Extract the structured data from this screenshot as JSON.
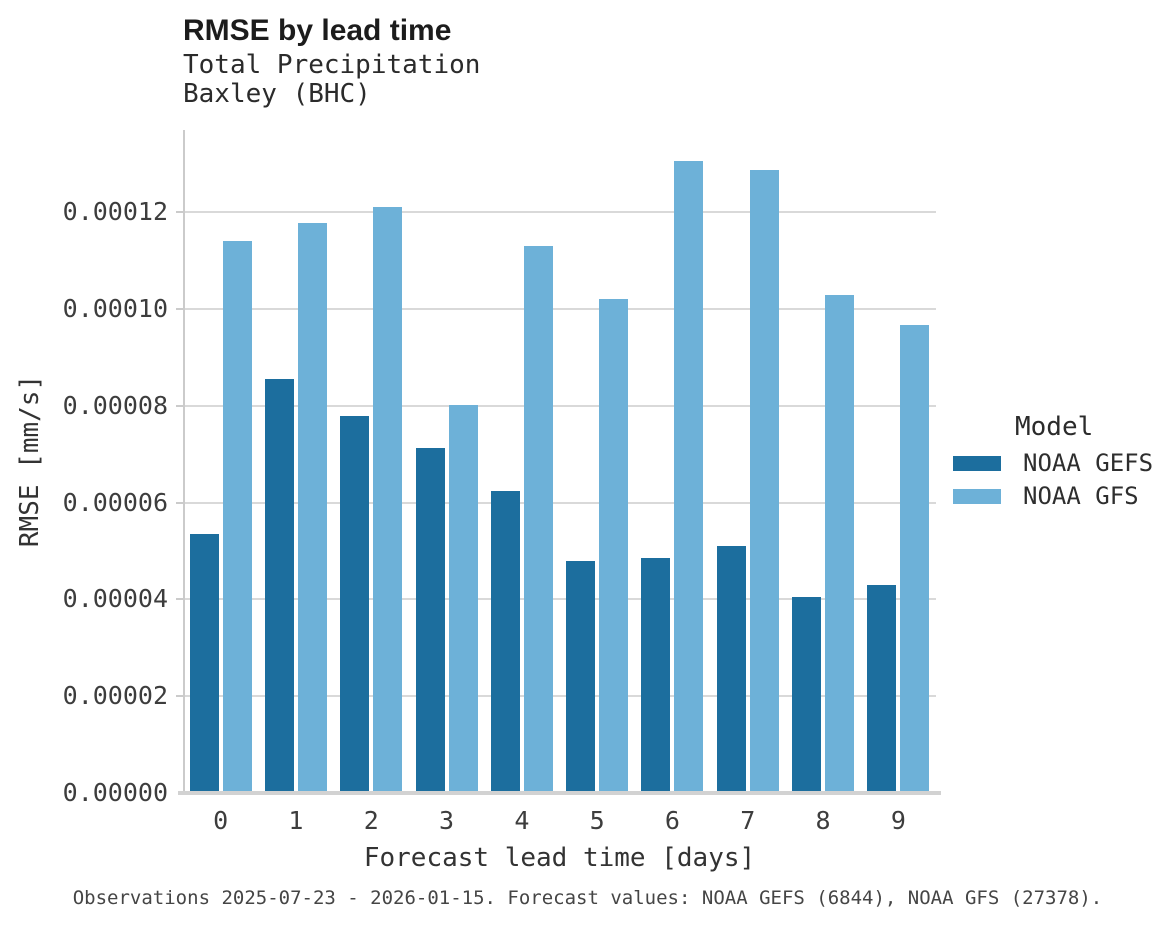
{
  "header": {
    "title": "RMSE by lead time",
    "subtitle_line1": "Total Precipitation",
    "subtitle_line2": "Baxley (BHC)"
  },
  "legend": {
    "title": "Model"
  },
  "footer": {
    "note": "Observations 2025-07-23 - 2026-01-15. Forecast values: NOAA GEFS (6844), NOAA GFS (27378)."
  },
  "chart_data": {
    "type": "bar",
    "title": "RMSE by lead time",
    "subtitle": [
      "Total Precipitation",
      "Baxley (BHC)"
    ],
    "xlabel": "Forecast lead time [days]",
    "ylabel": "RMSE [mm/s]",
    "categories": [
      "0",
      "1",
      "2",
      "3",
      "4",
      "5",
      "6",
      "7",
      "8",
      "9"
    ],
    "series": [
      {
        "name": "NOAA GEFS",
        "color": "#1c6e9e",
        "values": [
          5.36e-05,
          8.55e-05,
          7.79e-05,
          7.12e-05,
          6.25e-05,
          4.8e-05,
          4.86e-05,
          5.11e-05,
          4.05e-05,
          4.3e-05
        ]
      },
      {
        "name": "NOAA GFS",
        "color": "#6db1d8",
        "values": [
          0.000114,
          0.0001177,
          0.0001211,
          8.01e-05,
          0.0001131,
          0.0001021,
          0.0001305,
          0.0001288,
          0.0001029,
          9.68e-05
        ]
      }
    ],
    "ylim": [
      0,
      0.000137
    ],
    "yticks": [
      0.0,
      2e-05,
      4e-05,
      6e-05,
      8e-05,
      0.0001,
      0.00012
    ],
    "ytick_labels": [
      "0.00000",
      "0.00002",
      "0.00004",
      "0.00006",
      "0.00008",
      "0.00010",
      "0.00012"
    ],
    "grid": "horizontal",
    "legend_title": "Model",
    "legend_position": "right",
    "colors": {
      "grid": "#d9d9d9",
      "spine": "#cbcbcb",
      "baseline": "#d2d2d2"
    }
  }
}
